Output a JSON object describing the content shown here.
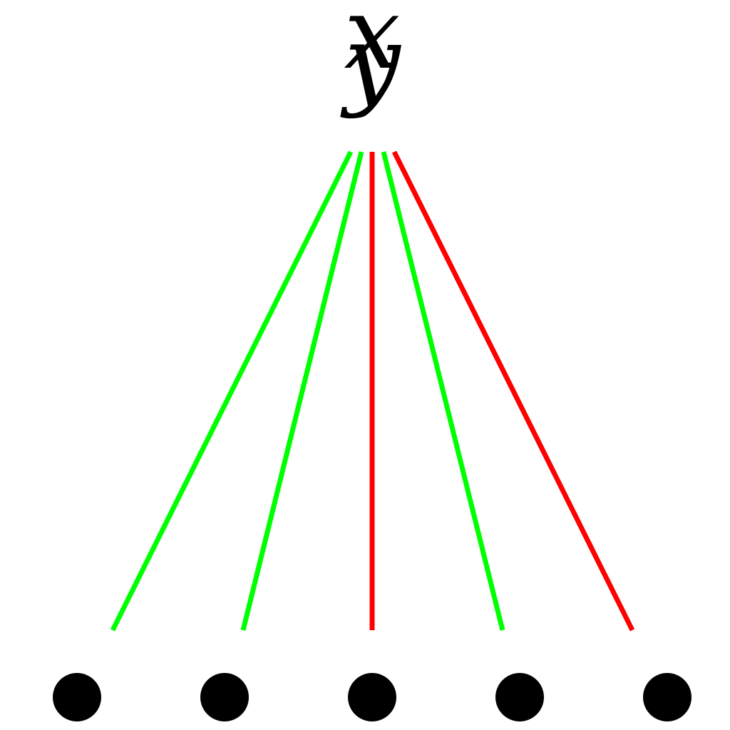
{
  "root": {
    "glyphs": [
      "x",
      "y"
    ]
  },
  "colors": {
    "green": "#00ff00",
    "red": "#ff0000",
    "node": "#000000"
  },
  "edges": [
    {
      "to": 0,
      "color": "green"
    },
    {
      "to": 1,
      "color": "green"
    },
    {
      "to": 2,
      "color": "red"
    },
    {
      "to": 3,
      "color": "green"
    },
    {
      "to": 4,
      "color": "red"
    }
  ],
  "nodes": [
    {
      "id": 0
    },
    {
      "id": 1
    },
    {
      "id": 2
    },
    {
      "id": 3
    },
    {
      "id": 4
    }
  ]
}
